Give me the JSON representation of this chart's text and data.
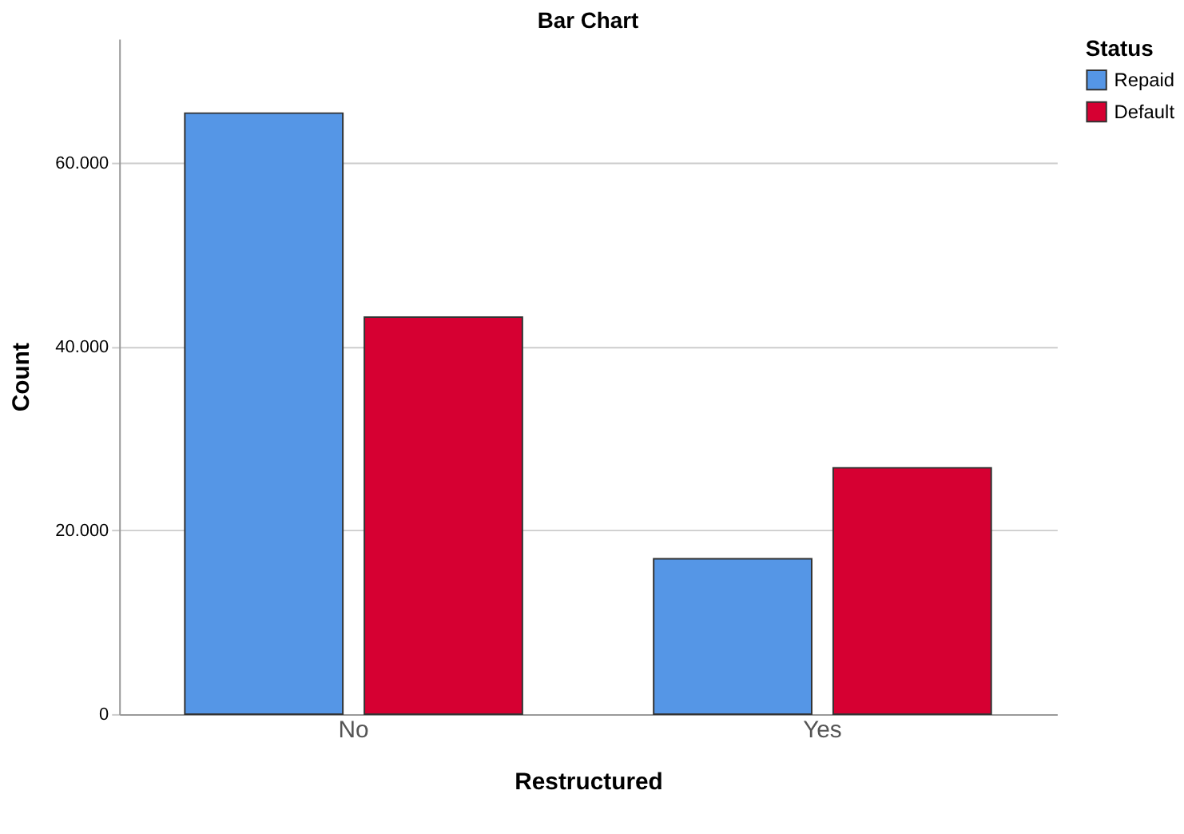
{
  "chart_data": {
    "type": "bar",
    "title": "Bar Chart",
    "xlabel": "Restructured",
    "ylabel": "Count",
    "legend_title": "Status",
    "categories": [
      "No",
      "Yes"
    ],
    "series": [
      {
        "name": "Repaid",
        "color": "#5596e6",
        "values": [
          65400,
          16900
        ]
      },
      {
        "name": "Default",
        "color": "#d60032",
        "values": [
          43200,
          26800
        ]
      }
    ],
    "ylim": [
      0,
      73500
    ],
    "yticks": [
      0,
      {
        "value": 20000,
        "label": "20.000"
      },
      {
        "value": 40000,
        "label": "40.000"
      },
      {
        "value": 60000,
        "label": "60.000"
      }
    ],
    "grid": "y",
    "legend": "top right"
  }
}
